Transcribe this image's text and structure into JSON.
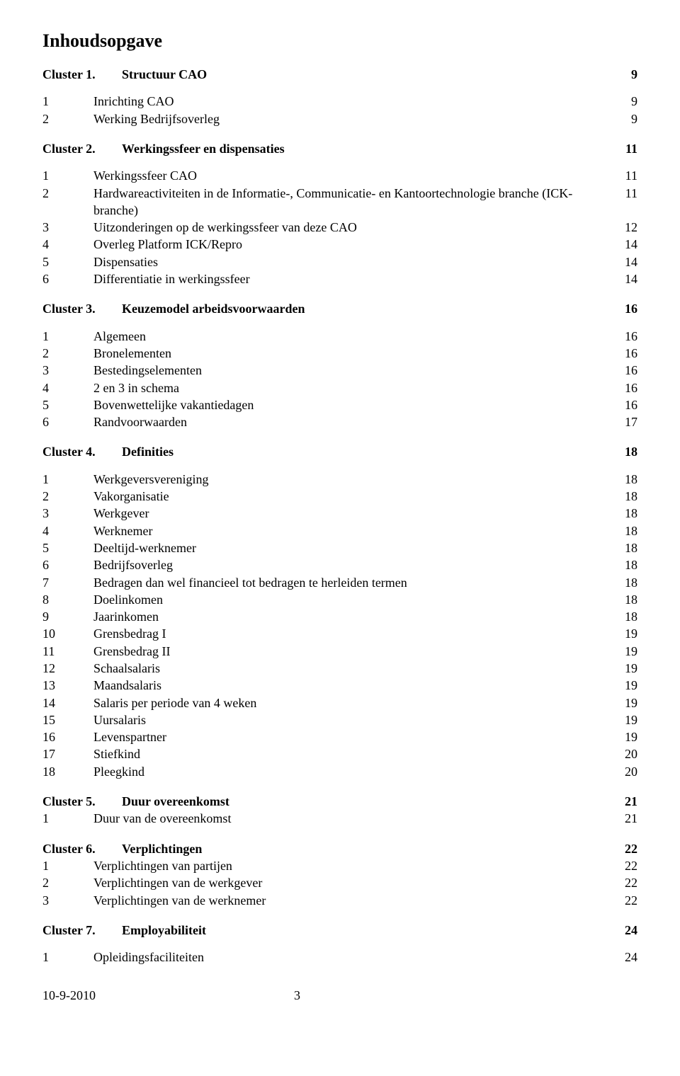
{
  "title": "Inhoudsopgave",
  "clusters": [
    {
      "label": "Cluster 1.",
      "title": "Structuur CAO",
      "page": "9",
      "items": [
        {
          "num": "1",
          "label": "Inrichting CAO",
          "page": "9"
        },
        {
          "num": "2",
          "label": "Werking Bedrijfsoverleg",
          "page": "9"
        }
      ]
    },
    {
      "label": "Cluster 2.",
      "title": "Werkingssfeer en dispensaties",
      "page": "11",
      "items": [
        {
          "num": "1",
          "label": "Werkingssfeer CAO",
          "page": "11"
        },
        {
          "num": "2",
          "label": "Hardwareactiviteiten in de Informatie-, Communicatie- en Kantoortechnologie branche (ICK-branche)",
          "page": "11"
        },
        {
          "num": "3",
          "label": "Uitzonderingen op de werkingssfeer van deze CAO",
          "page": "12"
        },
        {
          "num": "4",
          "label": "Overleg Platform ICK/Repro",
          "page": "14"
        },
        {
          "num": "5",
          "label": "Dispensaties",
          "page": "14"
        },
        {
          "num": "6",
          "label": "Differentiatie in werkingssfeer",
          "page": "14"
        }
      ]
    },
    {
      "label": "Cluster 3.",
      "title": "Keuzemodel arbeidsvoorwaarden",
      "page": "16",
      "items": [
        {
          "num": "1",
          "label": "Algemeen",
          "page": "16"
        },
        {
          "num": "2",
          "label": "Bronelementen",
          "page": "16"
        },
        {
          "num": "3",
          "label": "Bestedingselementen",
          "page": "16"
        },
        {
          "num": "4",
          "label": "2 en 3 in schema",
          "page": "16"
        },
        {
          "num": "5",
          "label": "Bovenwettelijke vakantiedagen",
          "page": "16"
        },
        {
          "num": "6",
          "label": "Randvoorwaarden",
          "page": "17"
        }
      ]
    },
    {
      "label": "Cluster 4.",
      "title": "Definities",
      "page": "18",
      "items": [
        {
          "num": "1",
          "label": "Werkgeversvereniging",
          "page": "18"
        },
        {
          "num": "2",
          "label": "Vakorganisatie",
          "page": "18"
        },
        {
          "num": "3",
          "label": "Werkgever",
          "page": "18"
        },
        {
          "num": "4",
          "label": "Werknemer",
          "page": "18"
        },
        {
          "num": "5",
          "label": "Deeltijd-werknemer",
          "page": "18"
        },
        {
          "num": "6",
          "label": "Bedrijfsoverleg",
          "page": "18"
        },
        {
          "num": "7",
          "label": "Bedragen dan wel financieel tot bedragen te herleiden termen",
          "page": "18"
        },
        {
          "num": "8",
          "label": "Doelinkomen",
          "page": "18"
        },
        {
          "num": "9",
          "label": "Jaarinkomen",
          "page": "18"
        },
        {
          "num": "10",
          "label": "Grensbedrag I",
          "page": "19"
        },
        {
          "num": "11",
          "label": "Grensbedrag II",
          "page": "19"
        },
        {
          "num": "12",
          "label": "Schaalsalaris",
          "page": "19"
        },
        {
          "num": "13",
          "label": "Maandsalaris",
          "page": "19"
        },
        {
          "num": "14",
          "label": "Salaris per periode van 4 weken",
          "page": "19"
        },
        {
          "num": "15",
          "label": "Uursalaris",
          "page": "19"
        },
        {
          "num": "16",
          "label": "Levenspartner",
          "page": "19"
        },
        {
          "num": "17",
          "label": "Stiefkind",
          "page": "20"
        },
        {
          "num": "18",
          "label": "Pleegkind",
          "page": "20"
        }
      ]
    },
    {
      "label": "Cluster 5.",
      "title": "Duur overeenkomst",
      "page": "21",
      "compact": true,
      "items": [
        {
          "num": "1",
          "label": "Duur van de overeenkomst",
          "page": "21"
        }
      ]
    },
    {
      "label": "Cluster 6.",
      "title": "Verplichtingen",
      "page": "22",
      "compact": true,
      "items": [
        {
          "num": "1",
          "label": "Verplichtingen van partijen",
          "page": "22"
        },
        {
          "num": "2",
          "label": "Verplichtingen van de werkgever",
          "page": "22"
        },
        {
          "num": "3",
          "label": "Verplichtingen van de werknemer",
          "page": "22"
        }
      ]
    },
    {
      "label": "Cluster 7.",
      "title": "Employabiliteit",
      "page": "24",
      "items": [
        {
          "num": "1",
          "label": "Opleidingsfaciliteiten",
          "page": "24"
        }
      ]
    }
  ],
  "footer": {
    "date": "10-9-2010",
    "page_number": "3"
  }
}
